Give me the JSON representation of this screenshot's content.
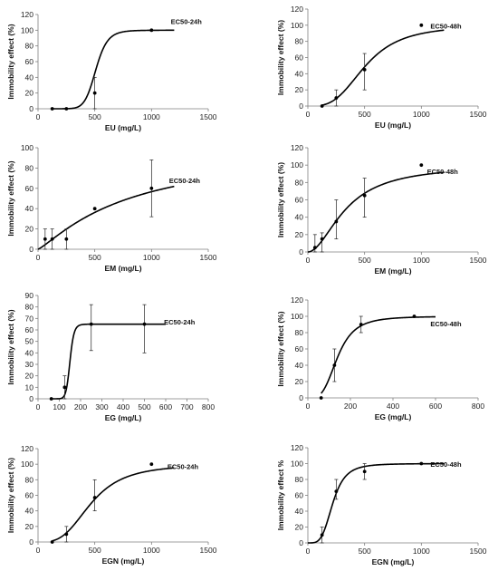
{
  "chart_data": [
    {
      "type": "scatter",
      "annotation": "EC50-24h",
      "xlabel": "EU (mg/L)",
      "ylabel": "Immobility effect (%)",
      "xlim": [
        0,
        1500
      ],
      "ylim": [
        0,
        120
      ],
      "xticks": [
        0,
        500,
        1000,
        1500
      ],
      "yticks": [
        0,
        20,
        40,
        60,
        80,
        100,
        120
      ],
      "points": [
        [
          125,
          0
        ],
        [
          250,
          0
        ],
        [
          500,
          20
        ],
        [
          1000,
          100
        ]
      ],
      "errors": [
        [
          500,
          0,
          40
        ]
      ],
      "curve": {
        "model": "logistic",
        "x_start": 125,
        "x_end": 1200,
        "ymax": 100,
        "ec50": 510,
        "hill": 10
      }
    },
    {
      "type": "scatter",
      "annotation": "EC50-48h",
      "xlabel": "EU (mg/L)",
      "ylabel": "Immobility effect (%)",
      "xlim": [
        0,
        1500
      ],
      "ylim": [
        0,
        120
      ],
      "xticks": [
        0,
        500,
        1000,
        1500
      ],
      "yticks": [
        0,
        20,
        40,
        60,
        80,
        100,
        120
      ],
      "points": [
        [
          125,
          0
        ],
        [
          250,
          10
        ],
        [
          500,
          45
        ],
        [
          1000,
          100
        ]
      ],
      "errors": [
        [
          250,
          0,
          20
        ],
        [
          500,
          20,
          65
        ]
      ],
      "curve": {
        "model": "logistic",
        "x_start": 125,
        "x_end": 1200,
        "ymax": 100,
        "ec50": 510,
        "hill": 3.2
      }
    },
    {
      "type": "scatter",
      "annotation": "EC50-24h",
      "xlabel": "EM (mg/L)",
      "ylabel": "Immobility effect (%)",
      "xlim": [
        0,
        1500
      ],
      "ylim": [
        0,
        100
      ],
      "xticks": [
        0,
        500,
        1000,
        1500
      ],
      "yticks": [
        0,
        20,
        40,
        60,
        80,
        100
      ],
      "points": [
        [
          62.5,
          10
        ],
        [
          125,
          10
        ],
        [
          250,
          10
        ],
        [
          500,
          40
        ],
        [
          1000,
          60
        ]
      ],
      "errors": [
        [
          62.5,
          0,
          20
        ],
        [
          125,
          0,
          20
        ],
        [
          250,
          0,
          20
        ],
        [
          1000,
          32,
          88
        ]
      ],
      "curve": {
        "model": "logistic",
        "x_start": 0,
        "x_end": 1200,
        "ymax": 100,
        "ec50": 800,
        "hill": 1.2
      }
    },
    {
      "type": "scatter",
      "annotation": "EC50-48h",
      "xlabel": "EM (mg/L)",
      "ylabel": "Immobility effect (%)",
      "xlim": [
        0,
        1500
      ],
      "ylim": [
        0,
        120
      ],
      "xticks": [
        0,
        500,
        1000,
        1500
      ],
      "yticks": [
        0,
        20,
        40,
        60,
        80,
        100,
        120
      ],
      "points": [
        [
          62.5,
          5
        ],
        [
          125,
          15
        ],
        [
          250,
          35
        ],
        [
          500,
          65
        ],
        [
          1000,
          100
        ]
      ],
      "errors": [
        [
          62.5,
          0,
          20
        ],
        [
          125,
          0,
          22
        ],
        [
          250,
          15,
          60
        ],
        [
          500,
          40,
          85
        ]
      ],
      "curve": {
        "model": "logistic",
        "x_start": 0,
        "x_end": 1200,
        "ymax": 100,
        "ec50": 340,
        "hill": 1.9
      }
    },
    {
      "type": "scatter",
      "annotation": "EC50-24h",
      "xlabel": "EG (mg/L)",
      "ylabel": "Immobility effect (%)",
      "xlim": [
        0,
        800
      ],
      "ylim": [
        0,
        90
      ],
      "xticks": [
        0,
        100,
        200,
        300,
        400,
        500,
        600,
        700,
        800
      ],
      "yticks": [
        0,
        10,
        20,
        30,
        40,
        50,
        60,
        70,
        80,
        90
      ],
      "points": [
        [
          62.5,
          0
        ],
        [
          125,
          10
        ],
        [
          250,
          65
        ],
        [
          500,
          65
        ]
      ],
      "errors": [
        [
          125,
          0,
          20
        ],
        [
          250,
          42,
          82
        ],
        [
          500,
          40,
          82
        ]
      ],
      "curve": {
        "model": "logistic",
        "x_start": 62.5,
        "x_end": 600,
        "ymax": 65,
        "ec50": 150,
        "hill": 16
      }
    },
    {
      "type": "scatter",
      "annotation": "EC50-48h",
      "xlabel": "EG (mg/L)",
      "ylabel": "Immobility effect (%)",
      "xlim": [
        0,
        800
      ],
      "ylim": [
        0,
        120
      ],
      "xticks": [
        0,
        200,
        400,
        600,
        800
      ],
      "yticks": [
        0,
        20,
        40,
        60,
        80,
        100,
        120
      ],
      "points": [
        [
          62.5,
          0
        ],
        [
          125,
          40
        ],
        [
          250,
          90
        ],
        [
          500,
          100
        ]
      ],
      "errors": [
        [
          125,
          20,
          60
        ],
        [
          250,
          80,
          100
        ]
      ],
      "curve": {
        "model": "logistic",
        "x_start": 62.5,
        "x_end": 600,
        "ymax": 100,
        "ec50": 140,
        "hill": 3.5
      }
    },
    {
      "type": "scatter",
      "annotation": "EC50-24h",
      "xlabel": "EGN (mg/L)",
      "ylabel": "Immobility effect (%)",
      "xlim": [
        0,
        1500
      ],
      "ylim": [
        0,
        120
      ],
      "xticks": [
        0,
        500,
        1000,
        1500
      ],
      "yticks": [
        0,
        20,
        40,
        60,
        80,
        100,
        120
      ],
      "points": [
        [
          125,
          0
        ],
        [
          250,
          10
        ],
        [
          500,
          57
        ],
        [
          1000,
          100
        ]
      ],
      "errors": [
        [
          250,
          0,
          20
        ],
        [
          500,
          40,
          80
        ]
      ],
      "curve": {
        "model": "logistic",
        "x_start": 125,
        "x_end": 1200,
        "ymax": 100,
        "ec50": 470,
        "hill": 3.2
      }
    },
    {
      "type": "scatter",
      "annotation": "EC50-48h",
      "xlabel": "EGN (mg/L)",
      "ylabel": "Immobility effect %",
      "xlim": [
        0,
        1500
      ],
      "ylim": [
        0,
        120
      ],
      "xticks": [
        0,
        500,
        1000,
        1500
      ],
      "yticks": [
        0,
        20,
        40,
        60,
        80,
        100,
        120
      ],
      "points": [
        [
          125,
          10
        ],
        [
          250,
          65
        ],
        [
          500,
          90
        ],
        [
          1000,
          100
        ]
      ],
      "errors": [
        [
          125,
          0,
          20
        ],
        [
          250,
          55,
          80
        ],
        [
          500,
          80,
          100
        ]
      ],
      "curve": {
        "model": "logistic",
        "x_start": 0,
        "x_end": 1200,
        "ymax": 100,
        "ec50": 220,
        "hill": 4
      }
    }
  ]
}
